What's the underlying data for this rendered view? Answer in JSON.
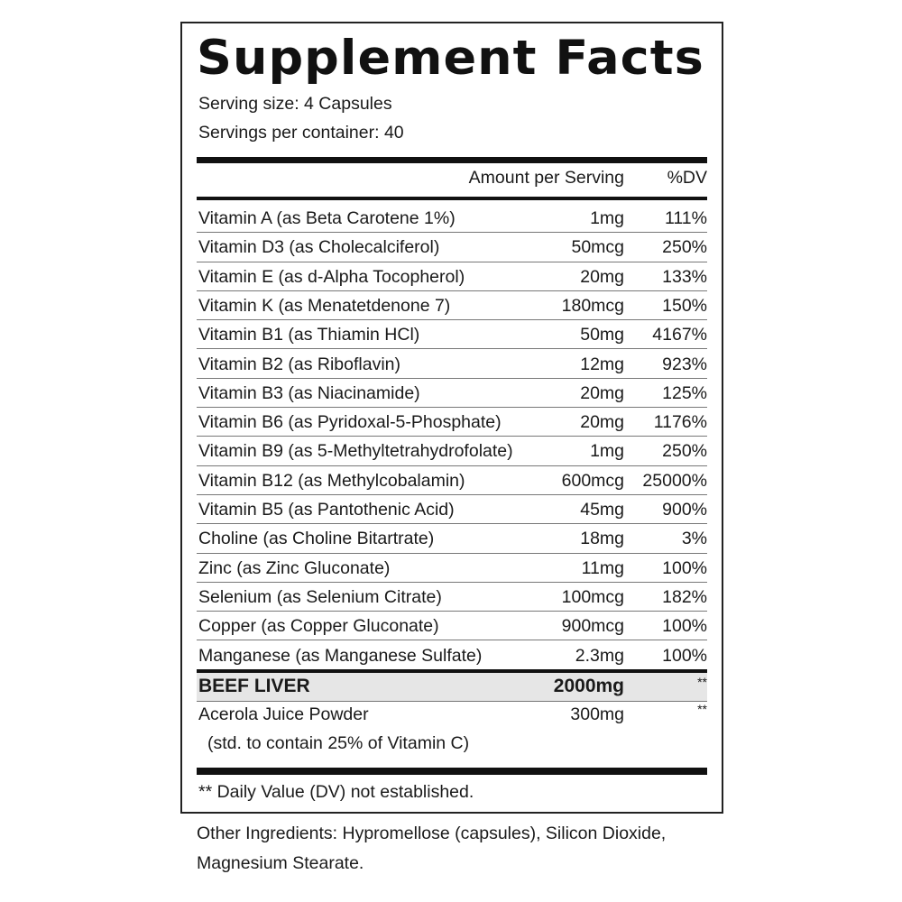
{
  "title": "Supplement Facts",
  "serving_size": "Serving size: 4 Capsules",
  "servings_per_container": "Servings per container: 40",
  "header": {
    "amount": "Amount per Serving",
    "dv": "%DV"
  },
  "rows": [
    {
      "name": "Vitamin A (as Beta Carotene 1%)",
      "amount": "1mg",
      "dv": "111%"
    },
    {
      "name": "Vitamin D3 (as Cholecalciferol)",
      "amount": "50mcg",
      "dv": "250%"
    },
    {
      "name": "Vitamin E (as d-Alpha Tocopherol)",
      "amount": "20mg",
      "dv": "133%"
    },
    {
      "name": "Vitamin K (as Menatetdenone 7)",
      "amount": "180mcg",
      "dv": "150%"
    },
    {
      "name": "Vitamin B1 (as Thiamin HCl)",
      "amount": "50mg",
      "dv": "4167%"
    },
    {
      "name": "Vitamin B2 (as Riboflavin)",
      "amount": "12mg",
      "dv": "923%"
    },
    {
      "name": "Vitamin B3 (as Niacinamide)",
      "amount": "20mg",
      "dv": "125%"
    },
    {
      "name": "Vitamin B6 (as Pyridoxal-5-Phosphate)",
      "amount": "20mg",
      "dv": "1176%"
    },
    {
      "name": "Vitamin B9 (as 5-Methyltetrahydrofolate)",
      "amount": "1mg",
      "dv": "250%"
    },
    {
      "name": "Vitamin B12 (as Methylcobalamin)",
      "amount": "600mcg",
      "dv": "25000%"
    },
    {
      "name": "Vitamin B5 (as Pantothenic Acid)",
      "amount": "45mg",
      "dv": "900%"
    },
    {
      "name": "Choline (as Choline Bitartrate)",
      "amount": "18mg",
      "dv": "3%"
    },
    {
      "name": "Zinc (as Zinc Gluconate)",
      "amount": "11mg",
      "dv": "100%"
    },
    {
      "name": "Selenium (as Selenium Citrate)",
      "amount": "100mcg",
      "dv": "182%"
    },
    {
      "name": "Copper (as Copper Gluconate)",
      "amount": "900mcg",
      "dv": "100%"
    },
    {
      "name": "Manganese (as Manganese Sulfate)",
      "amount": "2.3mg",
      "dv": "100%"
    }
  ],
  "beef": {
    "name": "BEEF LIVER",
    "amount": "2000mg",
    "dv": "**"
  },
  "acerola": {
    "name": "Acerola Juice Powder",
    "sub": "(std. to contain 25% of Vitamin C)",
    "amount": "300mg",
    "dv": "**"
  },
  "footnote": "** Daily Value (DV) not established.",
  "other_1": "Other Ingredients: Hypromellose (capsules), Silicon Dioxide,",
  "other_2": "Magnesium Stearate."
}
